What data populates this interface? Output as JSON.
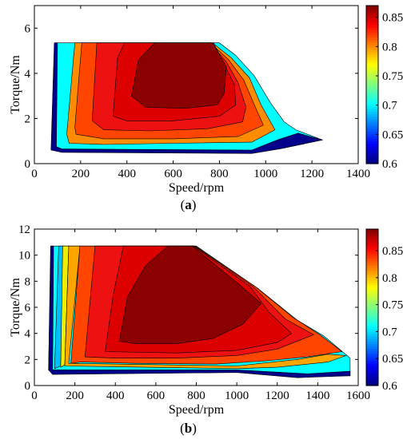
{
  "chart_data": [
    {
      "type": "contour",
      "caption": "(a)",
      "caption_letter": "a",
      "xlabel": "Speed/rpm",
      "ylabel": "Torque/Nm",
      "xlim": [
        0,
        1400
      ],
      "ylim": [
        0,
        7
      ],
      "xticks": [
        0,
        200,
        400,
        600,
        800,
        1000,
        1200,
        1400
      ],
      "yticks": [
        0,
        2,
        4,
        6
      ],
      "colorbar": {
        "min": 0.6,
        "max": 0.87,
        "ticks": [
          "0.85",
          "0.8",
          "0.75",
          "0.7",
          "0.65",
          "0.6"
        ],
        "tick_values": [
          0.85,
          0.8,
          0.75,
          0.7,
          0.65,
          0.6
        ]
      },
      "region_color": "#00ffff",
      "envelope": [
        [
          80,
          0.6
        ],
        [
          90,
          5.35
        ],
        [
          800,
          5.35
        ],
        [
          870,
          4.8
        ],
        [
          950,
          3.9
        ],
        [
          1020,
          2.7
        ],
        [
          1080,
          1.85
        ],
        [
          1130,
          1.5
        ],
        [
          1245,
          1.05
        ],
        [
          1060,
          0.65
        ],
        [
          940,
          0.5
        ],
        [
          120,
          0.55
        ]
      ],
      "levels": [
        {
          "color": "#00008b",
          "polygon": [
            [
              72,
              0.6
            ],
            [
              86,
              5.35
            ],
            [
              100,
              5.35
            ],
            [
              95,
              0.75
            ],
            [
              120,
              0.65
            ],
            [
              940,
              0.6
            ],
            [
              1050,
              1.05
            ],
            [
              1140,
              1.35
            ],
            [
              1245,
              1.05
            ],
            [
              1060,
              0.65
            ],
            [
              940,
              0.45
            ],
            [
              120,
              0.5
            ]
          ]
        },
        {
          "color": "#ff8c00",
          "polygon": [
            [
              140,
              1.3
            ],
            [
              175,
              5.35
            ],
            [
              770,
              5.35
            ],
            [
              850,
              4.7
            ],
            [
              930,
              3.8
            ],
            [
              980,
              2.6
            ],
            [
              1040,
              1.5
            ],
            [
              940,
              0.95
            ],
            [
              600,
              0.9
            ],
            [
              300,
              0.85
            ],
            [
              150,
              0.9
            ]
          ]
        },
        {
          "color": "#ff4500",
          "polygon": [
            [
              175,
              1.6
            ],
            [
              205,
              5.35
            ],
            [
              760,
              5.35
            ],
            [
              840,
              4.6
            ],
            [
              905,
              3.7
            ],
            [
              955,
              2.5
            ],
            [
              990,
              1.7
            ],
            [
              880,
              1.2
            ],
            [
              600,
              1.1
            ],
            [
              300,
              1.1
            ],
            [
              180,
              1.3
            ]
          ]
        },
        {
          "color": "#ee1111",
          "polygon": [
            [
              250,
              1.9
            ],
            [
              270,
              5.35
            ],
            [
              760,
              5.35
            ],
            [
              830,
              4.5
            ],
            [
              880,
              3.6
            ],
            [
              915,
              2.5
            ],
            [
              900,
              1.85
            ],
            [
              750,
              1.55
            ],
            [
              500,
              1.45
            ],
            [
              300,
              1.5
            ]
          ]
        },
        {
          "color": "#dd0000",
          "polygon": [
            [
              340,
              2.1
            ],
            [
              360,
              4.7
            ],
            [
              390,
              5.35
            ],
            [
              775,
              5.35
            ],
            [
              820,
              4.4
            ],
            [
              865,
              3.5
            ],
            [
              870,
              2.6
            ],
            [
              800,
              2.1
            ],
            [
              600,
              1.9
            ],
            [
              400,
              1.9
            ]
          ]
        },
        {
          "color": "#8b0000",
          "polygon": [
            [
              420,
              3.0
            ],
            [
              450,
              4.6
            ],
            [
              520,
              5.35
            ],
            [
              770,
              5.35
            ],
            [
              830,
              4.3
            ],
            [
              820,
              3.1
            ],
            [
              790,
              2.6
            ],
            [
              650,
              2.45
            ],
            [
              480,
              2.5
            ]
          ]
        }
      ]
    },
    {
      "type": "contour",
      "caption": "(b)",
      "caption_letter": "b",
      "xlabel": "Speed/rpm",
      "ylabel": "Torque/Nm",
      "xlim": [
        0,
        1600
      ],
      "ylim": [
        0,
        12
      ],
      "xticks": [
        0,
        200,
        400,
        600,
        800,
        1000,
        1200,
        1400,
        1600
      ],
      "yticks": [
        0,
        2,
        4,
        6,
        8,
        10,
        12
      ],
      "colorbar": {
        "min": 0.6,
        "max": 0.89,
        "ticks": [
          "0.85",
          "0.8",
          "0.75",
          "0.7",
          "0.65",
          "0.6"
        ],
        "tick_values": [
          0.85,
          0.8,
          0.75,
          0.7,
          0.65,
          0.6
        ]
      },
      "region_color": "#00ffff",
      "envelope": [
        [
          70,
          1.2
        ],
        [
          80,
          10.7
        ],
        [
          800,
          10.7
        ],
        [
          1100,
          7.5
        ],
        [
          1300,
          5.0
        ],
        [
          1430,
          3.8
        ],
        [
          1560,
          2.1
        ],
        [
          1560,
          0.75
        ],
        [
          1300,
          0.8
        ],
        [
          1000,
          1.0
        ],
        [
          90,
          1.0
        ]
      ],
      "levels": [
        {
          "color": "#00008b",
          "polygon": [
            [
              70,
              1.2
            ],
            [
              82,
              10.7
            ],
            [
              95,
              10.7
            ],
            [
              90,
              1.2
            ],
            [
              1000,
              1.2
            ],
            [
              1350,
              0.9
            ],
            [
              1560,
              1.1
            ],
            [
              1560,
              0.75
            ],
            [
              1300,
              0.6
            ],
            [
              1000,
              1.0
            ],
            [
              90,
              0.85
            ]
          ]
        },
        {
          "color": "#00bfff",
          "polygon": [
            [
              100,
              1.3
            ],
            [
              120,
              10.7
            ],
            [
              150,
              10.7
            ],
            [
              130,
              1.5
            ]
          ]
        },
        {
          "color": "#eeee00",
          "polygon": [
            [
              130,
              1.4
            ],
            [
              140,
              10.7
            ],
            [
              170,
              10.7
            ],
            [
              150,
              1.6
            ]
          ]
        },
        {
          "color": "#ffa500",
          "polygon": [
            [
              150,
              1.5
            ],
            [
              170,
              10.7
            ],
            [
              225,
              10.7
            ],
            [
              170,
              1.7
            ],
            [
              1000,
              1.5
            ],
            [
              1300,
              2.0
            ],
            [
              1450,
              2.4
            ],
            [
              1540,
              2.3
            ],
            [
              1450,
              1.8
            ],
            [
              1200,
              1.4
            ],
            [
              1000,
              1.3
            ]
          ]
        },
        {
          "color": "#ff4500",
          "polygon": [
            [
              180,
              1.7
            ],
            [
              225,
              10.7
            ],
            [
              795,
              10.7
            ],
            [
              1090,
              7.6
            ],
            [
              1280,
              5.2
            ],
            [
              1410,
              3.9
            ],
            [
              1520,
              2.6
            ],
            [
              1350,
              2.2
            ],
            [
              1150,
              1.9
            ],
            [
              900,
              1.65
            ],
            [
              500,
              1.7
            ],
            [
              230,
              1.8
            ]
          ]
        },
        {
          "color": "#ee1111",
          "polygon": [
            [
              250,
              2.2
            ],
            [
              300,
              10.7
            ],
            [
              790,
              10.7
            ],
            [
              1080,
              7.6
            ],
            [
              1240,
              5.1
            ],
            [
              1380,
              3.9
            ],
            [
              1200,
              2.8
            ],
            [
              1000,
              2.3
            ],
            [
              700,
              2.1
            ],
            [
              400,
              2.1
            ]
          ]
        },
        {
          "color": "#dd0000",
          "polygon": [
            [
              350,
              2.6
            ],
            [
              390,
              7.0
            ],
            [
              440,
              10.7
            ],
            [
              785,
              10.7
            ],
            [
              1065,
              7.6
            ],
            [
              1160,
              5.6
            ],
            [
              1270,
              4.0
            ],
            [
              1200,
              3.3
            ],
            [
              1000,
              2.7
            ],
            [
              700,
              2.5
            ]
          ]
        },
        {
          "color": "#8b0000",
          "polygon": [
            [
              420,
              3.4
            ],
            [
              460,
              6.8
            ],
            [
              550,
              9.2
            ],
            [
              660,
              10.7
            ],
            [
              780,
              10.7
            ],
            [
              1000,
              7.9
            ],
            [
              1120,
              6.3
            ],
            [
              1030,
              4.7
            ],
            [
              880,
              3.6
            ],
            [
              700,
              3.2
            ],
            [
              500,
              3.2
            ]
          ]
        }
      ]
    }
  ]
}
